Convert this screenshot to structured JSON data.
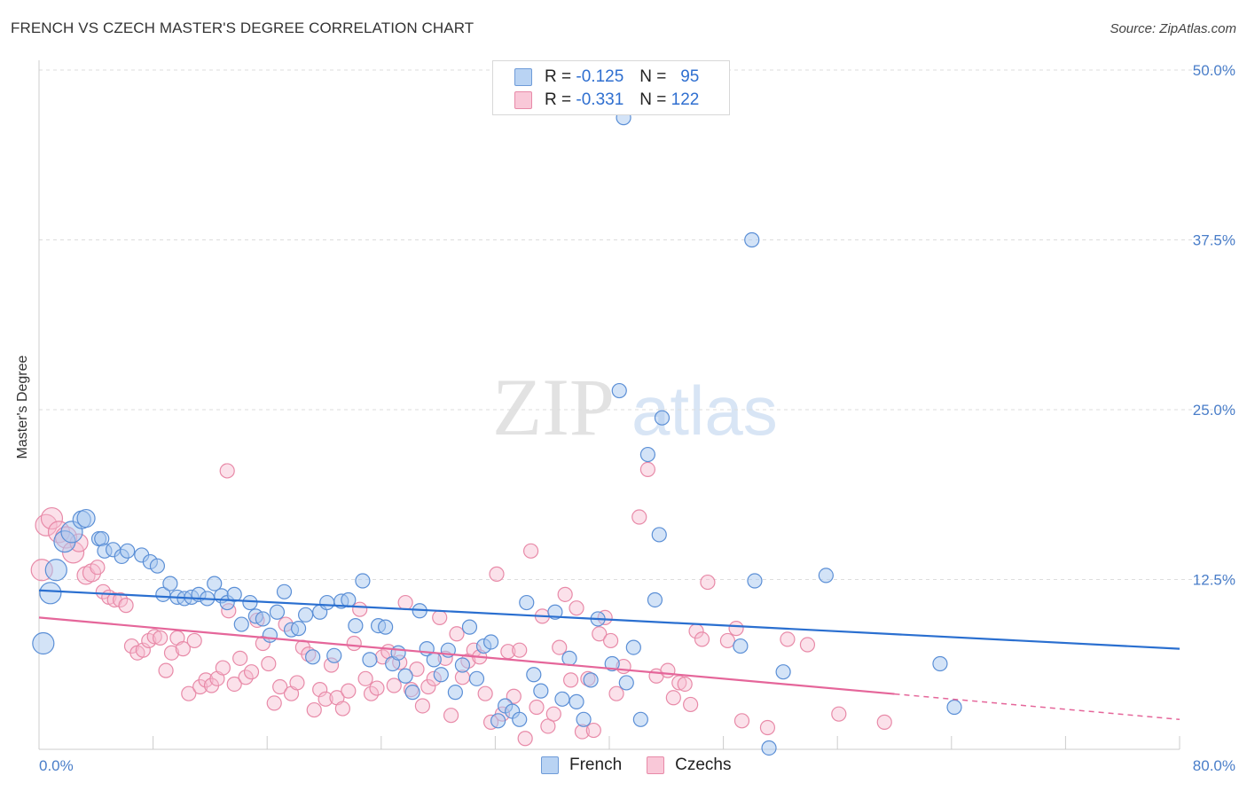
{
  "title": "FRENCH VS CZECH MASTER'S DEGREE CORRELATION CHART",
  "source": "Source: ZipAtlas.com",
  "colors": {
    "french_fill": "#a8c8f0",
    "french_stroke": "#5b8fd6",
    "french_line": "#2a6fd0",
    "czech_fill": "#f7bcd0",
    "czech_stroke": "#e88aa8",
    "czech_line": "#e5669a",
    "axis_label": "#4a7ec9",
    "grid": "#dddddd"
  },
  "legend": {
    "rows": [
      {
        "r_label": "R =",
        "r_value": "-0.125",
        "n_label": "N =",
        "n_value": "95",
        "series": "french"
      },
      {
        "r_label": "R =",
        "r_value": "-0.331",
        "n_label": "N =",
        "n_value": "122",
        "series": "czechs"
      }
    ]
  },
  "bottom_legend": {
    "french": "French",
    "czechs": "Czechs"
  },
  "watermark": {
    "zip": "ZIP",
    "atlas": "atlas"
  },
  "chart_data": {
    "type": "scatter",
    "xlabel": "",
    "ylabel": "Master's Degree",
    "xlim": [
      0,
      80
    ],
    "ylim": [
      0,
      50
    ],
    "x_tick_labels": [
      "0.0%",
      "80.0%"
    ],
    "y_ticks": [
      12.5,
      25.0,
      37.5,
      50.0
    ],
    "y_tick_labels": [
      "12.5%",
      "25.0%",
      "37.5%",
      "50.0%"
    ],
    "grid": true,
    "legend_position": "top-center",
    "series": [
      {
        "name": "French",
        "points": [
          [
            0.3,
            7.8
          ],
          [
            0.8,
            11.5
          ],
          [
            1.2,
            13.2
          ],
          [
            1.8,
            15.3
          ],
          [
            2.3,
            16.0
          ],
          [
            3.0,
            16.9
          ],
          [
            3.3,
            17.0
          ],
          [
            4.2,
            15.5
          ],
          [
            4.4,
            15.5
          ],
          [
            4.6,
            14.6
          ],
          [
            5.2,
            14.7
          ],
          [
            5.8,
            14.2
          ],
          [
            6.2,
            14.6
          ],
          [
            7.2,
            14.3
          ],
          [
            7.8,
            13.8
          ],
          [
            8.3,
            13.5
          ],
          [
            8.7,
            11.4
          ],
          [
            9.2,
            12.2
          ],
          [
            9.7,
            11.2
          ],
          [
            10.2,
            11.1
          ],
          [
            10.7,
            11.2
          ],
          [
            11.2,
            11.4
          ],
          [
            11.8,
            11.1
          ],
          [
            12.3,
            12.2
          ],
          [
            12.8,
            11.3
          ],
          [
            13.2,
            10.8
          ],
          [
            13.7,
            11.4
          ],
          [
            14.2,
            9.2
          ],
          [
            14.8,
            10.8
          ],
          [
            15.2,
            9.8
          ],
          [
            15.7,
            9.6
          ],
          [
            16.2,
            8.4
          ],
          [
            16.7,
            10.1
          ],
          [
            17.2,
            11.6
          ],
          [
            17.7,
            8.8
          ],
          [
            18.2,
            8.9
          ],
          [
            18.7,
            9.9
          ],
          [
            19.2,
            6.8
          ],
          [
            19.7,
            10.1
          ],
          [
            20.2,
            10.8
          ],
          [
            20.7,
            6.9
          ],
          [
            21.2,
            10.9
          ],
          [
            21.7,
            11.0
          ],
          [
            22.2,
            9.1
          ],
          [
            22.7,
            12.4
          ],
          [
            23.2,
            6.6
          ],
          [
            23.8,
            9.1
          ],
          [
            24.3,
            9.0
          ],
          [
            24.8,
            6.3
          ],
          [
            25.2,
            7.1
          ],
          [
            25.7,
            5.4
          ],
          [
            26.2,
            4.2
          ],
          [
            26.7,
            10.2
          ],
          [
            27.2,
            7.4
          ],
          [
            27.7,
            6.6
          ],
          [
            28.2,
            5.5
          ],
          [
            28.7,
            7.3
          ],
          [
            29.2,
            4.2
          ],
          [
            29.7,
            6.2
          ],
          [
            30.2,
            9.0
          ],
          [
            30.7,
            5.2
          ],
          [
            31.2,
            7.6
          ],
          [
            31.7,
            7.9
          ],
          [
            32.2,
            2.1
          ],
          [
            32.7,
            3.2
          ],
          [
            33.2,
            2.8
          ],
          [
            33.7,
            2.2
          ],
          [
            34.2,
            10.8
          ],
          [
            34.7,
            5.5
          ],
          [
            35.2,
            4.3
          ],
          [
            36.2,
            10.1
          ],
          [
            36.7,
            3.7
          ],
          [
            37.2,
            6.7
          ],
          [
            37.7,
            3.5
          ],
          [
            38.2,
            2.2
          ],
          [
            38.7,
            5.1
          ],
          [
            39.2,
            9.6
          ],
          [
            40.2,
            6.3
          ],
          [
            40.7,
            26.4
          ],
          [
            41.2,
            4.9
          ],
          [
            41.7,
            7.5
          ],
          [
            42.2,
            2.2
          ],
          [
            42.7,
            21.7
          ],
          [
            43.2,
            11.0
          ],
          [
            43.5,
            15.8
          ],
          [
            43.7,
            24.4
          ],
          [
            49.2,
            7.6
          ],
          [
            50.2,
            12.4
          ],
          [
            51.2,
            0.1
          ],
          [
            52.2,
            5.7
          ],
          [
            55.2,
            12.8
          ],
          [
            63.2,
            6.3
          ],
          [
            64.2,
            3.1
          ],
          [
            41.0,
            46.5
          ],
          [
            50.0,
            37.5
          ]
        ]
      },
      {
        "name": "Czechs",
        "points": [
          [
            0.2,
            13.2
          ],
          [
            0.5,
            16.5
          ],
          [
            0.9,
            17.0
          ],
          [
            1.4,
            16.0
          ],
          [
            1.9,
            15.6
          ],
          [
            2.4,
            14.5
          ],
          [
            2.8,
            15.2
          ],
          [
            3.3,
            12.8
          ],
          [
            3.7,
            13.0
          ],
          [
            4.1,
            13.4
          ],
          [
            4.5,
            11.6
          ],
          [
            4.9,
            11.2
          ],
          [
            5.3,
            11.0
          ],
          [
            5.7,
            11.0
          ],
          [
            6.1,
            10.6
          ],
          [
            6.5,
            7.6
          ],
          [
            6.9,
            7.1
          ],
          [
            7.3,
            7.3
          ],
          [
            7.7,
            8.0
          ],
          [
            8.1,
            8.3
          ],
          [
            8.5,
            8.2
          ],
          [
            8.9,
            5.8
          ],
          [
            9.3,
            7.1
          ],
          [
            9.7,
            8.2
          ],
          [
            10.1,
            7.4
          ],
          [
            10.5,
            4.1
          ],
          [
            10.9,
            8.0
          ],
          [
            11.3,
            4.6
          ],
          [
            11.7,
            5.1
          ],
          [
            12.1,
            4.7
          ],
          [
            12.5,
            5.2
          ],
          [
            12.9,
            6.0
          ],
          [
            13.3,
            10.2
          ],
          [
            13.7,
            4.8
          ],
          [
            14.1,
            6.7
          ],
          [
            14.5,
            5.3
          ],
          [
            14.9,
            5.7
          ],
          [
            15.3,
            9.5
          ],
          [
            15.7,
            7.8
          ],
          [
            16.1,
            6.3
          ],
          [
            16.5,
            3.4
          ],
          [
            16.9,
            4.6
          ],
          [
            17.3,
            9.2
          ],
          [
            17.7,
            4.1
          ],
          [
            18.1,
            4.9
          ],
          [
            18.5,
            7.5
          ],
          [
            18.9,
            7.0
          ],
          [
            19.3,
            2.9
          ],
          [
            19.7,
            4.4
          ],
          [
            20.1,
            3.7
          ],
          [
            20.5,
            6.2
          ],
          [
            20.9,
            3.8
          ],
          [
            21.3,
            3.0
          ],
          [
            21.7,
            4.3
          ],
          [
            22.1,
            7.8
          ],
          [
            22.5,
            10.3
          ],
          [
            22.9,
            5.2
          ],
          [
            23.3,
            4.1
          ],
          [
            23.7,
            4.5
          ],
          [
            24.1,
            6.8
          ],
          [
            24.5,
            7.2
          ],
          [
            24.9,
            4.7
          ],
          [
            25.3,
            6.4
          ],
          [
            25.7,
            10.8
          ],
          [
            26.1,
            4.4
          ],
          [
            26.5,
            5.9
          ],
          [
            26.9,
            3.2
          ],
          [
            27.3,
            4.6
          ],
          [
            27.7,
            5.2
          ],
          [
            28.1,
            9.7
          ],
          [
            28.5,
            6.7
          ],
          [
            28.9,
            2.5
          ],
          [
            29.3,
            8.5
          ],
          [
            29.7,
            5.3
          ],
          [
            30.1,
            6.5
          ],
          [
            30.5,
            7.3
          ],
          [
            30.9,
            6.8
          ],
          [
            31.3,
            4.1
          ],
          [
            31.7,
            2.0
          ],
          [
            32.1,
            12.9
          ],
          [
            32.5,
            2.6
          ],
          [
            32.9,
            7.2
          ],
          [
            33.3,
            3.9
          ],
          [
            33.7,
            7.3
          ],
          [
            34.1,
            0.8
          ],
          [
            34.5,
            14.6
          ],
          [
            34.9,
            3.1
          ],
          [
            35.3,
            9.8
          ],
          [
            35.7,
            1.7
          ],
          [
            36.1,
            2.6
          ],
          [
            36.5,
            7.5
          ],
          [
            36.9,
            11.4
          ],
          [
            37.3,
            5.1
          ],
          [
            37.7,
            10.4
          ],
          [
            38.1,
            1.3
          ],
          [
            38.5,
            5.2
          ],
          [
            38.9,
            1.4
          ],
          [
            39.3,
            8.5
          ],
          [
            39.7,
            9.7
          ],
          [
            40.1,
            8.0
          ],
          [
            40.5,
            4.1
          ],
          [
            41.0,
            6.1
          ],
          [
            42.1,
            17.1
          ],
          [
            42.7,
            20.6
          ],
          [
            43.3,
            5.4
          ],
          [
            44.1,
            5.8
          ],
          [
            44.5,
            3.8
          ],
          [
            44.9,
            4.9
          ],
          [
            45.3,
            4.8
          ],
          [
            45.7,
            3.3
          ],
          [
            46.1,
            8.7
          ],
          [
            46.5,
            8.1
          ],
          [
            46.9,
            12.3
          ],
          [
            48.3,
            8.0
          ],
          [
            48.9,
            8.9
          ],
          [
            49.3,
            2.1
          ],
          [
            51.1,
            1.6
          ],
          [
            52.5,
            8.1
          ],
          [
            53.9,
            7.7
          ],
          [
            56.1,
            2.6
          ],
          [
            59.3,
            2.0
          ],
          [
            13.2,
            20.5
          ]
        ]
      }
    ],
    "trend_lines": [
      {
        "name": "French",
        "x": [
          0,
          80
        ],
        "y": [
          11.7,
          7.4
        ],
        "dashed_from": null
      },
      {
        "name": "Czechs",
        "x": [
          0,
          80
        ],
        "y": [
          9.7,
          2.2
        ],
        "dashed_from": 60
      }
    ]
  }
}
